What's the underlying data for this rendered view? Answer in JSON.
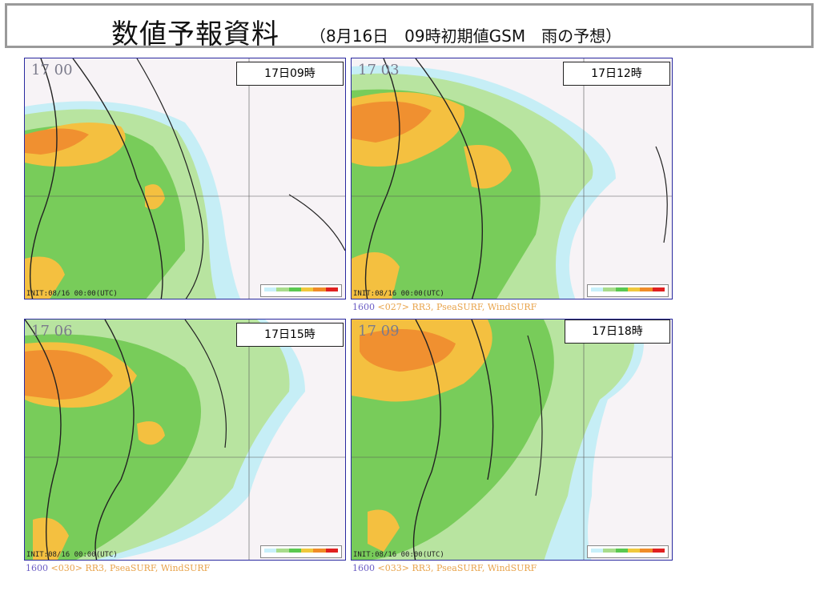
{
  "title": {
    "main": "数値予報資料",
    "sub": "（8月16日　09時初期値GSM　雨の予想）"
  },
  "panels": [
    {
      "label": "17日09時",
      "time_code": "17 00",
      "init": "INIT:08/16 00:00(UTC)",
      "footer_num": "",
      "footer_code": "",
      "footer_rest": ""
    },
    {
      "label": "17日12時",
      "time_code": "17 03",
      "init": "INIT:08/16 00:00(UTC)",
      "footer_num": "1600",
      "footer_code": "<027>",
      "footer_rest": "RR3, PseaSURF, WindSURF"
    },
    {
      "label": "17日15時",
      "time_code": "17 06",
      "init": "INIT:08/16 00:00(UTC)",
      "footer_num": "1600",
      "footer_code": "<030>",
      "footer_rest": "RR3, PseaSURF, WindSURF"
    },
    {
      "label": "17日18時",
      "time_code": "17 09",
      "init": "INIT:08/16 00:00(UTC)",
      "footer_num": "1600",
      "footer_code": "<033>",
      "footer_rest": "RR3, PseaSURF, WindSURF"
    }
  ],
  "legend": {
    "colors": [
      "#c8f0fa",
      "#a8dc8c",
      "#5ac850",
      "#f0c83c",
      "#f08c28",
      "#e02020"
    ],
    "ticks": [
      "0.4",
      "1",
      "5",
      "10",
      "20",
      "50"
    ]
  },
  "map_colors": {
    "sea": "#f7f3f6",
    "light_blue": "#c6eef6",
    "light_green": "#b8e4a0",
    "green": "#78cc5a",
    "yellow": "#f4c040",
    "orange": "#f09030",
    "isobar": "#222222",
    "wind": "#d05878"
  }
}
